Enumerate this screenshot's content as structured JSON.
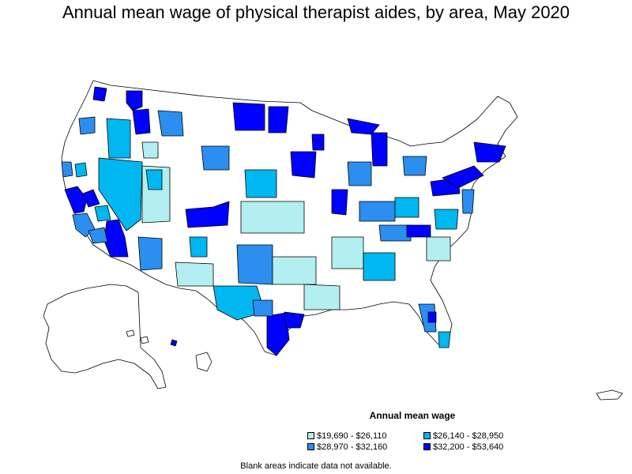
{
  "title": "Annual mean wage of physical therapist aides, by area, May 2020",
  "colors": {
    "outline": "#000000",
    "blank": "#ffffff",
    "c1": "#b3eef0",
    "c2": "#00b7f1",
    "c3": "#2b8ef0",
    "c4": "#0000ff"
  },
  "legend": {
    "title": "Annual mean wage",
    "items": [
      {
        "label": "$19,690 - $26,110",
        "color": "#b3eef0"
      },
      {
        "label": "$26,140 - $28,950",
        "color": "#00b7f1"
      },
      {
        "label": "$28,970 - $32,160",
        "color": "#2b8ef0"
      },
      {
        "label": "$32,200 - $53,640",
        "color": "#0000ff"
      }
    ]
  },
  "note": "Blank areas indicate data not available."
}
